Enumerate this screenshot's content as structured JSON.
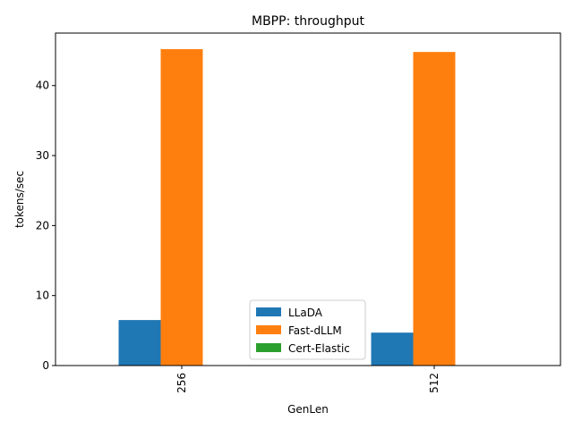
{
  "chart_data": {
    "type": "bar",
    "title": "MBPP: throughput",
    "xlabel": "GenLen",
    "ylabel": "tokens/sec",
    "categories": [
      "256",
      "512"
    ],
    "series": [
      {
        "name": "LLaDA",
        "values": [
          6.5,
          4.7
        ],
        "color": "#1f77b4"
      },
      {
        "name": "Fast-dLLM",
        "values": [
          45.2,
          44.8
        ],
        "color": "#ff7f0e"
      },
      {
        "name": "Cert-Elastic",
        "values": [
          0,
          0
        ],
        "color": "#2ca02c"
      }
    ],
    "ylim": [
      0,
      47.5
    ],
    "yticks": [
      0,
      10,
      20,
      30,
      40
    ],
    "grid": false,
    "legend_position": "bottom-center"
  }
}
